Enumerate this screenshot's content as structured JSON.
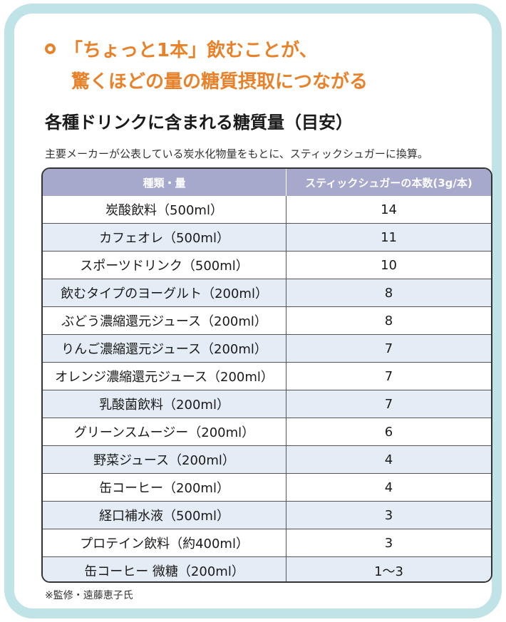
{
  "headline": {
    "line1": "「ちょっと1本」飲むことが、",
    "line2": "驚くほどの量の糖質摂取につながる",
    "accent_color": "#e8822a"
  },
  "subtitle": "各種ドリンクに含まれる糖質量（目安）",
  "note": "主要メーカーが公表している炭水化物量をもとに、スティックシュガーに換算。",
  "table": {
    "header_color": "#a6a8cc",
    "stripe_color": "#e4ecf5",
    "headers": [
      "種類・量",
      "スティックシュガーの本数(3g/本)"
    ],
    "rows": [
      {
        "item": "炭酸飲料（500ml）",
        "sticks": "14"
      },
      {
        "item": "カフェオレ（500ml）",
        "sticks": "11"
      },
      {
        "item": "スポーツドリンク（500ml）",
        "sticks": "10"
      },
      {
        "item": "飲むタイプのヨーグルト（200ml）",
        "sticks": "8"
      },
      {
        "item": "ぶどう濃縮還元ジュース（200ml）",
        "sticks": "8"
      },
      {
        "item": "りんご濃縮還元ジュース（200ml）",
        "sticks": "7"
      },
      {
        "item": "オレンジ濃縮還元ジュース（200ml）",
        "sticks": "7"
      },
      {
        "item": "乳酸菌飲料（200ml）",
        "sticks": "7"
      },
      {
        "item": "グリーンスムージー（200ml）",
        "sticks": "6"
      },
      {
        "item": "野菜ジュース（200ml）",
        "sticks": "4"
      },
      {
        "item": "缶コーヒー（200ml）",
        "sticks": "4"
      },
      {
        "item": "経口補水液（500ml）",
        "sticks": "3"
      },
      {
        "item": "プロテイン飲料（約400ml）",
        "sticks": "3"
      },
      {
        "item": "缶コーヒー 微糖（200ml）",
        "sticks": "1〜3"
      }
    ]
  },
  "footer": "※監修・遠藤恵子氏",
  "frame_color": "#bfe3e6"
}
